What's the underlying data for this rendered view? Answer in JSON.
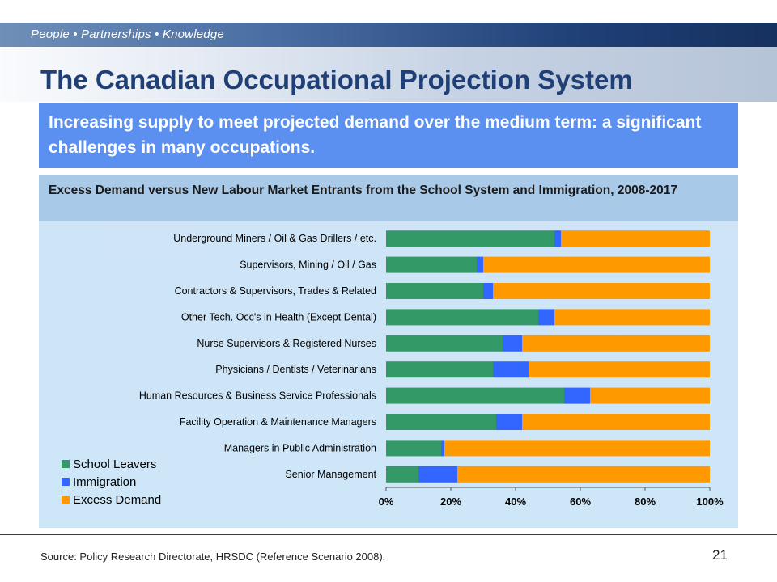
{
  "header": {
    "tagline": "People • Partnerships • Knowledge"
  },
  "slide": {
    "title": "The Canadian Occupational Projection System",
    "subtitle": "Increasing supply to meet projected demand over the medium term: a significant challenges in many occupations.",
    "source": "Source: Policy Research Directorate, HRSDC (Reference Scenario 2008).",
    "page_number": "21"
  },
  "chart_data": {
    "type": "bar",
    "orientation": "horizontal",
    "stacked": "percent",
    "title": "Excess Demand versus New Labour Market Entrants from the School System and Immigration, 2008-2017",
    "categories": [
      "Underground Miners / Oil & Gas Drillers / etc.",
      "Supervisors, Mining / Oil / Gas",
      "Contractors & Supervisors, Trades & Related",
      "Other Tech. Occ's in Health (Except Dental)",
      "Nurse Supervisors & Registered Nurses",
      "Physicians / Dentists / Veterinarians",
      "Human Resources & Business Service Professionals",
      "Facility Operation & Maintenance Managers",
      "Managers in Public Administration",
      "Senior Management"
    ],
    "series": [
      {
        "name": "School Leavers",
        "color": "#339966",
        "values": [
          52,
          28,
          30,
          47,
          36,
          33,
          55,
          34,
          17,
          10
        ]
      },
      {
        "name": "Immigration",
        "color": "#3366ff",
        "values": [
          2,
          2,
          3,
          5,
          6,
          11,
          8,
          8,
          1,
          12
        ]
      },
      {
        "name": "Excess Demand",
        "color": "#ff9900",
        "values": [
          46,
          70,
          67,
          48,
          58,
          56,
          37,
          58,
          82,
          78
        ]
      }
    ],
    "x_ticks": [
      "0%",
      "20%",
      "40%",
      "60%",
      "80%",
      "100%"
    ],
    "xlim": [
      0,
      100
    ],
    "grid": false,
    "legend_position": "bottom-left"
  }
}
